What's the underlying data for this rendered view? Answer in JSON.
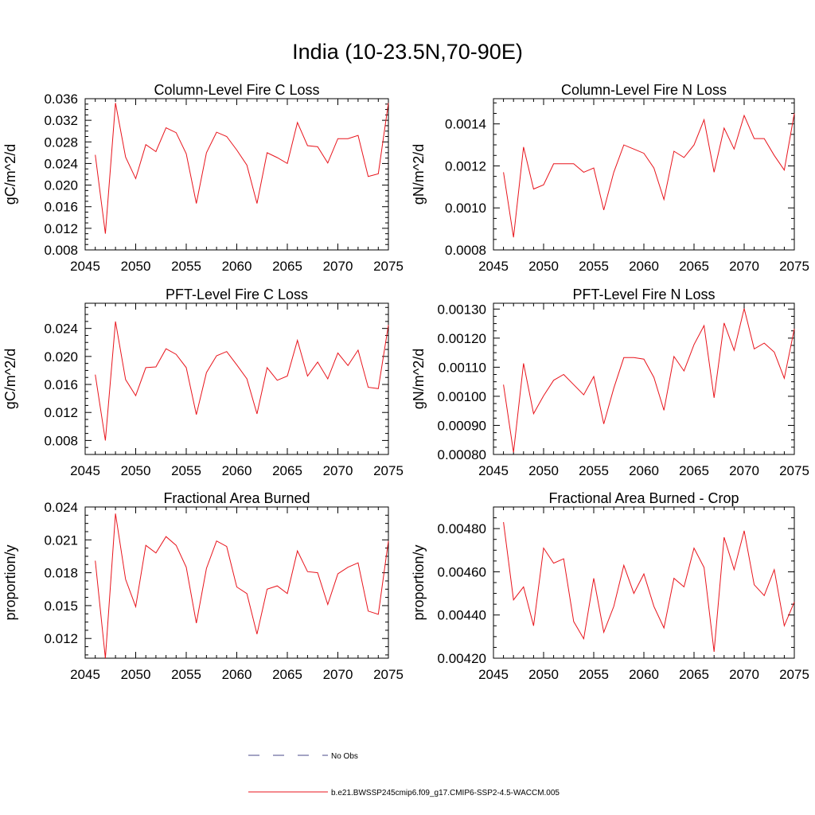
{
  "page": {
    "title": "India (10-23.5N,70-90E)"
  },
  "legend": {
    "no_obs_label": "No Obs",
    "no_obs_color": "#4a4a8a",
    "model_label": "b.e21.BWSSP245cmip6.f09_g17.CMIP6-SSP2-4.5-WACCM.005",
    "model_color": "#e8141c"
  },
  "chart_data": [
    {
      "id": "col-fire-c",
      "type": "line",
      "title": "Column-Level Fire C Loss",
      "ylabel": "gC/m^2/d",
      "xlim": [
        2045,
        2075
      ],
      "ylim": [
        0.008,
        0.036
      ],
      "yticks": [
        "0.008",
        "0.012",
        "0.016",
        "0.020",
        "0.024",
        "0.028",
        "0.032",
        "0.036"
      ],
      "xticks": [
        "2045",
        "2050",
        "2055",
        "2060",
        "2065",
        "2070",
        "2075"
      ],
      "x": [
        2046,
        2047,
        2048,
        2049,
        2050,
        2051,
        2052,
        2053,
        2054,
        2055,
        2056,
        2057,
        2058,
        2059,
        2060,
        2061,
        2062,
        2063,
        2064,
        2065,
        2066,
        2067,
        2068,
        2069,
        2070,
        2071,
        2072,
        2073,
        2074,
        2075
      ],
      "series": [
        {
          "values": [
            0.0256,
            0.011,
            0.0352,
            0.0252,
            0.0212,
            0.0275,
            0.0262,
            0.0306,
            0.0297,
            0.0258,
            0.0166,
            0.026,
            0.0298,
            0.029,
            0.0265,
            0.0237,
            0.0166,
            0.026,
            0.0251,
            0.024,
            0.0316,
            0.0273,
            0.0271,
            0.0241,
            0.0286,
            0.0286,
            0.0292,
            0.0216,
            0.0221,
            0.0352
          ],
          "color": "#e8141c"
        }
      ]
    },
    {
      "id": "col-fire-n",
      "type": "line",
      "title": "Column-Level Fire N Loss",
      "ylabel": "gN/m^2/d",
      "xlim": [
        2045,
        2075
      ],
      "ylim": [
        0.0008,
        0.00152
      ],
      "yticks": [
        "0.0008",
        "0.0010",
        "0.0012",
        "0.0014"
      ],
      "xticks": [
        "2045",
        "2050",
        "2055",
        "2060",
        "2065",
        "2070",
        "2075"
      ],
      "x": [
        2046,
        2047,
        2048,
        2049,
        2050,
        2051,
        2052,
        2053,
        2054,
        2055,
        2056,
        2057,
        2058,
        2059,
        2060,
        2061,
        2062,
        2063,
        2064,
        2065,
        2066,
        2067,
        2068,
        2069,
        2070,
        2071,
        2072,
        2073,
        2074,
        2075
      ],
      "series": [
        {
          "values": [
            0.00117,
            0.00086,
            0.00129,
            0.00109,
            0.00111,
            0.00121,
            0.00121,
            0.00121,
            0.00117,
            0.00119,
            0.00099,
            0.00117,
            0.0013,
            0.00128,
            0.00126,
            0.00119,
            0.00104,
            0.00127,
            0.00124,
            0.0013,
            0.00142,
            0.00117,
            0.00138,
            0.00128,
            0.00144,
            0.00133,
            0.00133,
            0.00125,
            0.00118,
            0.00145
          ],
          "color": "#e8141c"
        }
      ]
    },
    {
      "id": "pft-fire-c",
      "type": "line",
      "title": "PFT-Level Fire C Loss",
      "ylabel": "gC/m^2/d",
      "xlim": [
        2045,
        2075
      ],
      "ylim": [
        0.006,
        0.0276
      ],
      "yticks": [
        "0.008",
        "0.012",
        "0.016",
        "0.020",
        "0.024"
      ],
      "xticks": [
        "2045",
        "2050",
        "2055",
        "2060",
        "2065",
        "2070",
        "2075"
      ],
      "x": [
        2046,
        2047,
        2048,
        2049,
        2050,
        2051,
        2052,
        2053,
        2054,
        2055,
        2056,
        2057,
        2058,
        2059,
        2060,
        2061,
        2062,
        2063,
        2064,
        2065,
        2066,
        2067,
        2068,
        2069,
        2070,
        2071,
        2072,
        2073,
        2074,
        2075
      ],
      "series": [
        {
          "values": [
            0.0174,
            0.008,
            0.025,
            0.0167,
            0.0144,
            0.0184,
            0.0185,
            0.0211,
            0.0203,
            0.0184,
            0.0117,
            0.0177,
            0.0201,
            0.0207,
            0.0188,
            0.0168,
            0.0118,
            0.0184,
            0.0166,
            0.0172,
            0.0223,
            0.0172,
            0.0192,
            0.0168,
            0.0205,
            0.0187,
            0.0209,
            0.0156,
            0.0154,
            0.0245
          ],
          "color": "#e8141c"
        }
      ]
    },
    {
      "id": "pft-fire-n",
      "type": "line",
      "title": "PFT-Level Fire N Loss",
      "ylabel": "gN/m^2/d",
      "xlim": [
        2045,
        2075
      ],
      "ylim": [
        0.0008,
        0.00132
      ],
      "yticks": [
        "0.00080",
        "0.00090",
        "0.00100",
        "0.00110",
        "0.00120",
        "0.00130"
      ],
      "xticks": [
        "2045",
        "2050",
        "2055",
        "2060",
        "2065",
        "2070",
        "2075"
      ],
      "x": [
        2046,
        2047,
        2048,
        2049,
        2050,
        2051,
        2052,
        2053,
        2054,
        2055,
        2056,
        2057,
        2058,
        2059,
        2060,
        2061,
        2062,
        2063,
        2064,
        2065,
        2066,
        2067,
        2068,
        2069,
        2070,
        2071,
        2072,
        2073,
        2074,
        2075
      ],
      "series": [
        {
          "values": [
            0.00104,
            0.000807,
            0.001113,
            0.00094,
            0.001002,
            0.001055,
            0.001075,
            0.00104,
            0.001005,
            0.001068,
            0.000905,
            0.001028,
            0.001133,
            0.001133,
            0.001128,
            0.001065,
            0.000952,
            0.001137,
            0.001087,
            0.001178,
            0.001243,
            0.000995,
            0.001252,
            0.001158,
            0.001302,
            0.001163,
            0.001183,
            0.001152,
            0.001062,
            0.001232
          ],
          "color": "#e8141c"
        }
      ]
    },
    {
      "id": "frac-area",
      "type": "line",
      "title": "Fractional Area Burned",
      "ylabel": "proportion/y",
      "xlim": [
        2045,
        2075
      ],
      "ylim": [
        0.0102,
        0.024
      ],
      "yticks": [
        "0.012",
        "0.015",
        "0.018",
        "0.021",
        "0.024"
      ],
      "xticks": [
        "2045",
        "2050",
        "2055",
        "2060",
        "2065",
        "2070",
        "2075"
      ],
      "x": [
        2046,
        2047,
        2048,
        2049,
        2050,
        2051,
        2052,
        2053,
        2054,
        2055,
        2056,
        2057,
        2058,
        2059,
        2060,
        2061,
        2062,
        2063,
        2064,
        2065,
        2066,
        2067,
        2068,
        2069,
        2070,
        2071,
        2072,
        2073,
        2074,
        2075
      ],
      "series": [
        {
          "values": [
            0.0191,
            0.0102,
            0.0234,
            0.0174,
            0.0149,
            0.0205,
            0.0198,
            0.0213,
            0.0205,
            0.0185,
            0.0134,
            0.0184,
            0.0209,
            0.0204,
            0.0167,
            0.0161,
            0.0124,
            0.0165,
            0.0168,
            0.0161,
            0.02,
            0.0181,
            0.018,
            0.0151,
            0.0179,
            0.0185,
            0.0189,
            0.0145,
            0.0142,
            0.0209
          ],
          "color": "#e8141c"
        }
      ]
    },
    {
      "id": "frac-area-crop",
      "type": "line",
      "title": "Fractional Area Burned - Crop",
      "ylabel": "proportion/y",
      "xlim": [
        2045,
        2075
      ],
      "ylim": [
        0.0042,
        0.0049
      ],
      "yticks": [
        "0.00420",
        "0.00440",
        "0.00460",
        "0.00480"
      ],
      "xticks": [
        "2045",
        "2050",
        "2055",
        "2060",
        "2065",
        "2070",
        "2075"
      ],
      "x": [
        2046,
        2047,
        2048,
        2049,
        2050,
        2051,
        2052,
        2053,
        2054,
        2055,
        2056,
        2057,
        2058,
        2059,
        2060,
        2061,
        2062,
        2063,
        2064,
        2065,
        2066,
        2067,
        2068,
        2069,
        2070,
        2071,
        2072,
        2073,
        2074,
        2075
      ],
      "series": [
        {
          "values": [
            0.00483,
            0.00447,
            0.00453,
            0.00435,
            0.00471,
            0.00464,
            0.00466,
            0.00437,
            0.00429,
            0.00457,
            0.00432,
            0.00444,
            0.00463,
            0.0045,
            0.00459,
            0.00444,
            0.00434,
            0.00457,
            0.00453,
            0.00471,
            0.00462,
            0.00423,
            0.00476,
            0.00461,
            0.00479,
            0.00454,
            0.00449,
            0.00461,
            0.00435,
            0.00446
          ],
          "color": "#e8141c"
        }
      ]
    }
  ]
}
